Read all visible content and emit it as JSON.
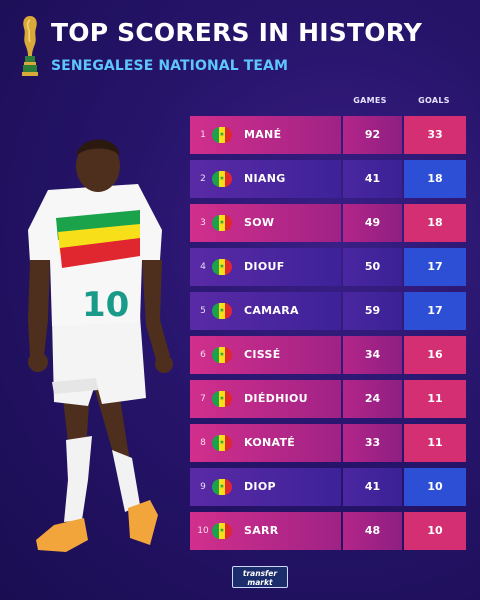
{
  "header": {
    "title": "TOP SCORERS IN HISTORY",
    "subtitle": "SENEGALESE NATIONAL TEAM"
  },
  "columns": {
    "games": "GAMES",
    "goals": "GOALS"
  },
  "player_jersey_number": "10",
  "rows": [
    {
      "rank": "1",
      "name": "MANÉ",
      "games": "92",
      "goals": "33",
      "goals_color": "pink"
    },
    {
      "rank": "2",
      "name": "NIANG",
      "games": "41",
      "goals": "18",
      "goals_color": "blue"
    },
    {
      "rank": "3",
      "name": "SOW",
      "games": "49",
      "goals": "18",
      "goals_color": "pink"
    },
    {
      "rank": "4",
      "name": "DIOUF",
      "games": "50",
      "goals": "17",
      "goals_color": "blue"
    },
    {
      "rank": "5",
      "name": "CAMARA",
      "games": "59",
      "goals": "17",
      "goals_color": "blue"
    },
    {
      "rank": "6",
      "name": "CISSÉ",
      "games": "34",
      "goals": "16",
      "goals_color": "pink"
    },
    {
      "rank": "7",
      "name": "DIÉDHIOU",
      "games": "24",
      "goals": "11",
      "goals_color": "pink"
    },
    {
      "rank": "8",
      "name": "KONATÉ",
      "games": "33",
      "goals": "11",
      "goals_color": "pink"
    },
    {
      "rank": "9",
      "name": "DIOP",
      "games": "41",
      "goals": "10",
      "goals_color": "blue"
    },
    {
      "rank": "10",
      "name": "SARR",
      "games": "48",
      "goals": "10",
      "goals_color": "pink"
    }
  ],
  "logo": {
    "line1": "transfer",
    "line2": "markt"
  },
  "colors": {
    "background": "#26146a",
    "row_pink": "#d22f8c",
    "row_purple": "#4a27a0",
    "goals_pink": "#d32f72",
    "goals_blue": "#2d4fd6",
    "subtitle": "#5dc6ff"
  },
  "icons": [
    "world-cup-trophy-icon",
    "senegal-flag-icon"
  ]
}
